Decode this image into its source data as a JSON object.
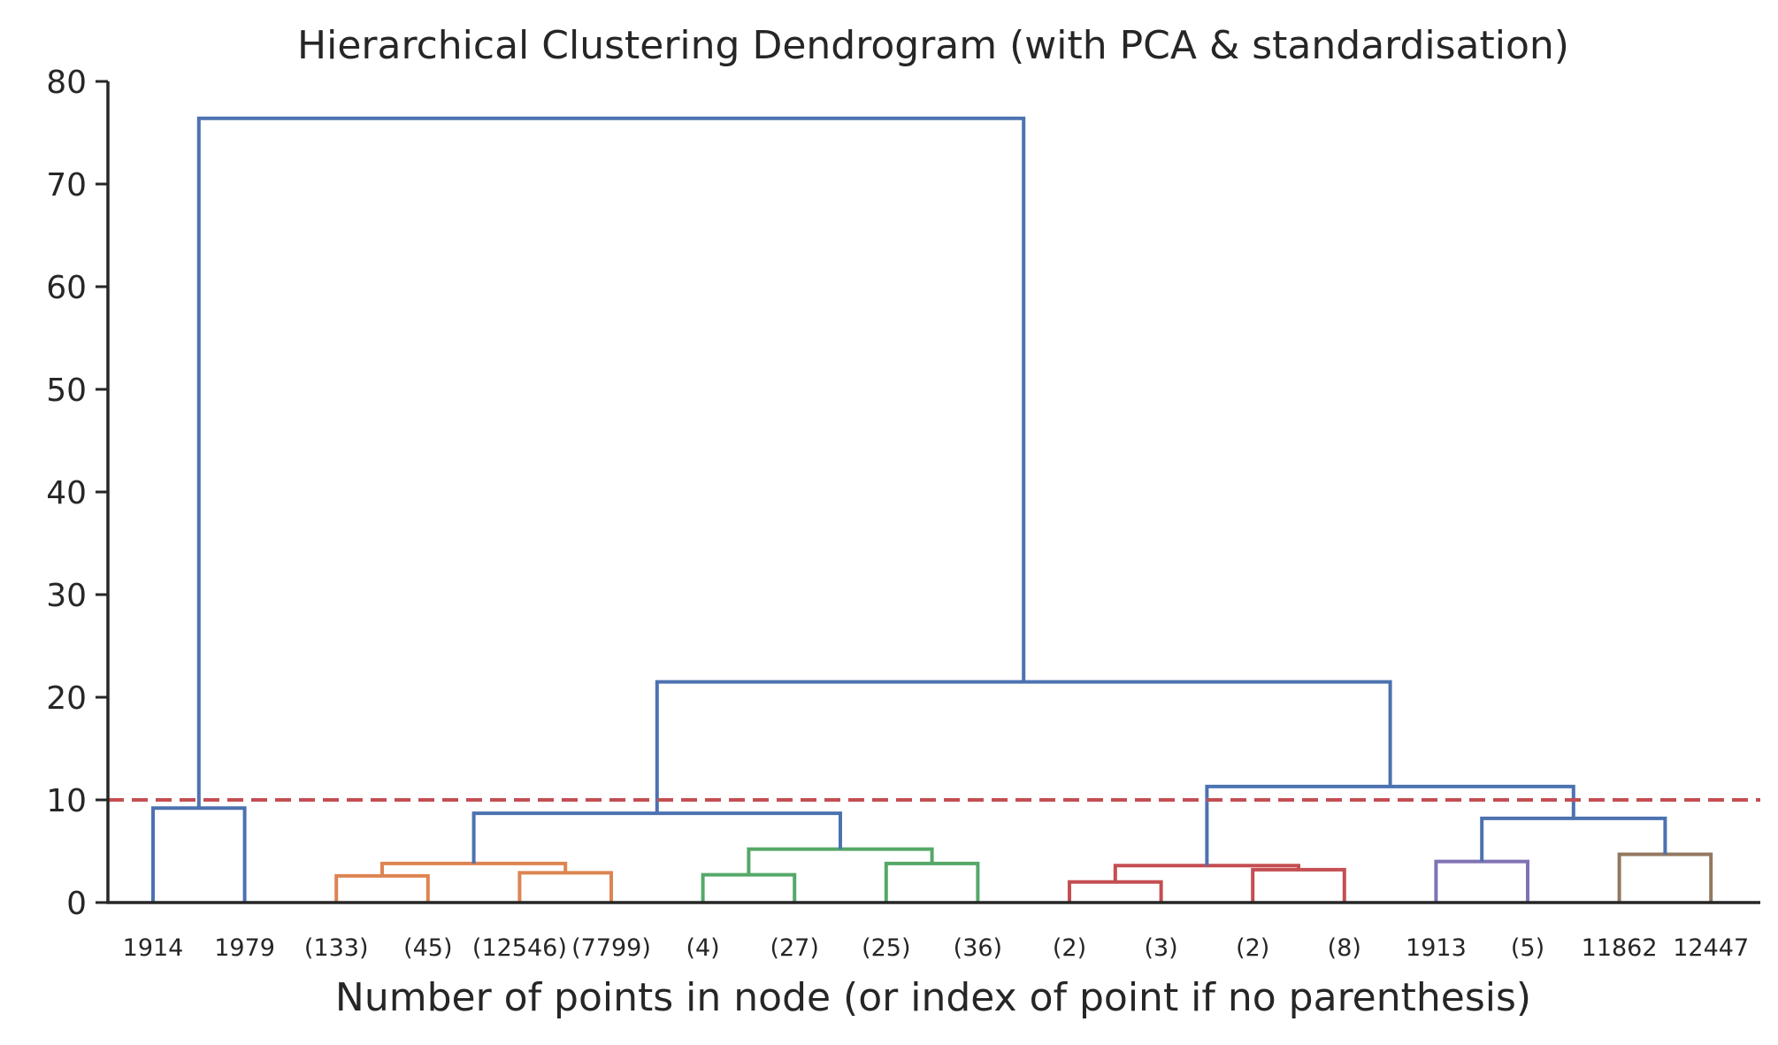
{
  "chart_data": {
    "type": "dendrogram",
    "title": "Hierarchical Clustering Dendrogram (with PCA & standardisation)",
    "xlabel": "Number of points in node (or index of point if no parenthesis)",
    "ylabel": "",
    "ylim": [
      0,
      80
    ],
    "yticks": [
      0,
      10,
      20,
      30,
      40,
      50,
      60,
      70,
      80
    ],
    "ytick_labels": [
      "0",
      "10",
      "20",
      "30",
      "40",
      "50",
      "60",
      "70",
      "80"
    ],
    "leaf_labels": [
      "1914",
      "1979",
      "(133)",
      "(45)",
      "(12546)",
      "(7799)",
      "(4)",
      "(27)",
      "(25)",
      "(36)",
      "(2)",
      "(3)",
      "(2)",
      "(8)",
      "1913",
      "(5)",
      "11862",
      "12447"
    ],
    "cut_line": {
      "y": 10,
      "color": "#c44e52",
      "style": "dashed"
    },
    "colors": {
      "blue": "#4c72b0",
      "orange": "#dd8452",
      "green": "#55a868",
      "red": "#c44e52",
      "purple": "#8172b3",
      "brown": "#937860"
    },
    "merges": [
      {
        "left": "L0",
        "right": "L1",
        "height": 9.2,
        "color": "blue"
      },
      {
        "left": "L2",
        "right": "L3",
        "height": 2.6,
        "color": "orange"
      },
      {
        "left": "L4",
        "right": "L5",
        "height": 2.9,
        "color": "orange"
      },
      {
        "left": "M1",
        "right": "M2",
        "height": 3.8,
        "color": "orange"
      },
      {
        "left": "L6",
        "right": "L7",
        "height": 2.7,
        "color": "green"
      },
      {
        "left": "L8",
        "right": "L9",
        "height": 3.8,
        "color": "green"
      },
      {
        "left": "M4",
        "right": "M5",
        "height": 5.2,
        "color": "green"
      },
      {
        "left": "M3",
        "right": "M6",
        "height": 8.7,
        "color": "blue"
      },
      {
        "left": "L10",
        "right": "L11",
        "height": 2.0,
        "color": "red"
      },
      {
        "left": "L12",
        "right": "L13",
        "height": 3.2,
        "color": "red"
      },
      {
        "left": "M8",
        "right": "M9",
        "height": 3.6,
        "color": "red"
      },
      {
        "left": "L14",
        "right": "L15",
        "height": 4.0,
        "color": "purple"
      },
      {
        "left": "L16",
        "right": "L17",
        "height": 4.7,
        "color": "brown"
      },
      {
        "left": "M11",
        "right": "M12",
        "height": 8.2,
        "color": "blue"
      },
      {
        "left": "M10",
        "right": "M13",
        "height": 11.3,
        "color": "blue"
      },
      {
        "left": "M7",
        "right": "M14",
        "height": 21.5,
        "color": "blue"
      },
      {
        "left": "M0",
        "right": "M15",
        "height": 76.4,
        "color": "blue"
      }
    ]
  }
}
